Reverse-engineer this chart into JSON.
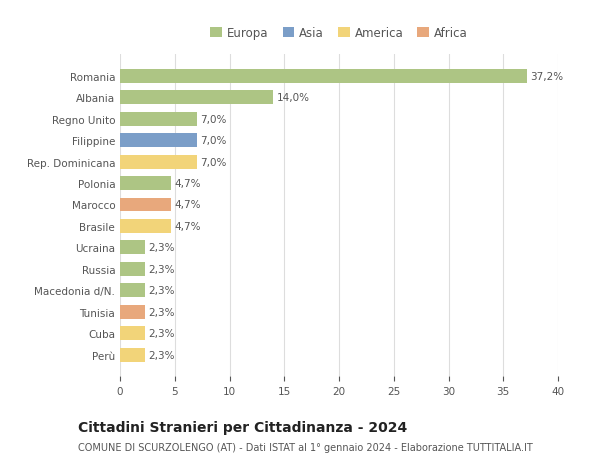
{
  "countries": [
    "Romania",
    "Albania",
    "Regno Unito",
    "Filippine",
    "Rep. Dominicana",
    "Polonia",
    "Marocco",
    "Brasile",
    "Ucraina",
    "Russia",
    "Macedonia d/N.",
    "Tunisia",
    "Cuba",
    "Perù"
  ],
  "values": [
    37.2,
    14.0,
    7.0,
    7.0,
    7.0,
    4.7,
    4.7,
    4.7,
    2.3,
    2.3,
    2.3,
    2.3,
    2.3,
    2.3
  ],
  "continents": [
    "Europa",
    "Europa",
    "Europa",
    "Asia",
    "America",
    "Europa",
    "Africa",
    "America",
    "Europa",
    "Europa",
    "Europa",
    "Africa",
    "America",
    "America"
  ],
  "colors": {
    "Europa": "#adc584",
    "Asia": "#7b9ec8",
    "America": "#f2d479",
    "Africa": "#e8a87c"
  },
  "legend_order": [
    "Europa",
    "Asia",
    "America",
    "Africa"
  ],
  "title": "Cittadini Stranieri per Cittadinanza - 2024",
  "subtitle": "COMUNE DI SCURZOLENGO (AT) - Dati ISTAT al 1° gennaio 2024 - Elaborazione TUTTITALIA.IT",
  "xlim": [
    0,
    40
  ],
  "xticks": [
    0,
    5,
    10,
    15,
    20,
    25,
    30,
    35,
    40
  ],
  "background_color": "#ffffff",
  "grid_color": "#dddddd",
  "bar_height": 0.65,
  "label_fontsize": 7.5,
  "title_fontsize": 10,
  "subtitle_fontsize": 7,
  "tick_fontsize": 7.5,
  "legend_fontsize": 8.5
}
